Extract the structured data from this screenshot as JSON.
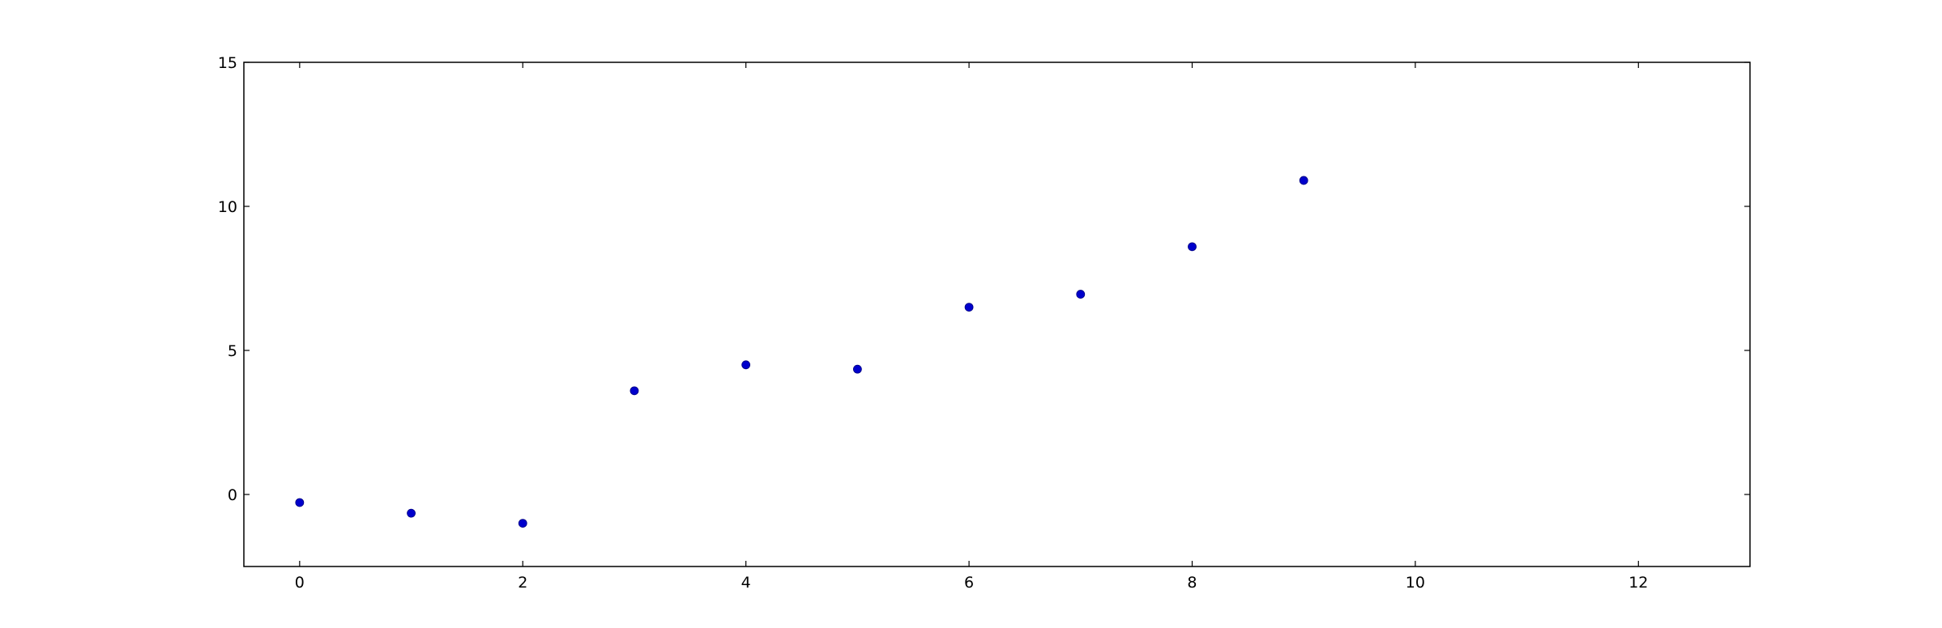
{
  "chart_data": {
    "type": "scatter",
    "title": "",
    "xlabel": "",
    "ylabel": "",
    "xlim": [
      -0.5,
      13
    ],
    "ylim": [
      -2.5,
      15
    ],
    "grid": false,
    "x_ticks": [
      0,
      2,
      4,
      6,
      8,
      10,
      12
    ],
    "y_ticks": [
      0,
      5,
      10,
      15
    ],
    "series": [
      {
        "color": "#0000cc",
        "marker": "circle",
        "points": [
          {
            "x": 0,
            "y": -0.28
          },
          {
            "x": 1,
            "y": -0.65
          },
          {
            "x": 2,
            "y": -1.0
          },
          {
            "x": 3,
            "y": 3.6
          },
          {
            "x": 4,
            "y": 4.5
          },
          {
            "x": 5,
            "y": 4.35
          },
          {
            "x": 6,
            "y": 6.5
          },
          {
            "x": 7,
            "y": 6.95
          },
          {
            "x": 8,
            "y": 8.6
          },
          {
            "x": 9,
            "y": 10.9
          }
        ]
      }
    ]
  }
}
